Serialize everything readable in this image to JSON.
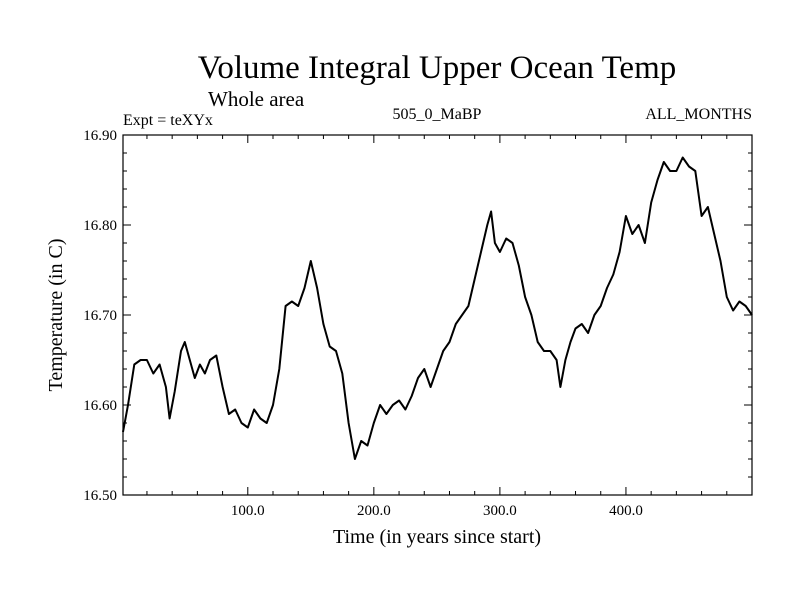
{
  "chart_data": {
    "type": "line",
    "title": "Volume Integral Upper Ocean Temp",
    "subtitle": "Whole area",
    "header_left": "Expt = teXYx",
    "header_center": "505_0_MaBP",
    "header_right": "ALL_MONTHS",
    "xlabel": "Time (in years since start)",
    "ylabel": "Temperature (in C)",
    "xlim": [
      1,
      500
    ],
    "ylim": [
      16.5,
      16.9
    ],
    "xticks": [
      100,
      200,
      300,
      400
    ],
    "xtick_labels": [
      "100.0",
      "200.0",
      "300.0",
      "400.0"
    ],
    "yticks": [
      16.5,
      16.6,
      16.7,
      16.8,
      16.9
    ],
    "ytick_labels": [
      "16.50",
      "16.60",
      "16.70",
      "16.80",
      "16.90"
    ],
    "series": [
      {
        "points": [
          [
            1,
            16.57
          ],
          [
            5,
            16.6
          ],
          [
            10,
            16.645
          ],
          [
            15,
            16.65
          ],
          [
            20,
            16.65
          ],
          [
            25,
            16.635
          ],
          [
            30,
            16.645
          ],
          [
            35,
            16.62
          ],
          [
            38,
            16.585
          ],
          [
            42,
            16.615
          ],
          [
            47,
            16.66
          ],
          [
            50,
            16.67
          ],
          [
            54,
            16.65
          ],
          [
            58,
            16.63
          ],
          [
            62,
            16.645
          ],
          [
            66,
            16.635
          ],
          [
            70,
            16.65
          ],
          [
            75,
            16.655
          ],
          [
            80,
            16.62
          ],
          [
            85,
            16.59
          ],
          [
            90,
            16.595
          ],
          [
            95,
            16.58
          ],
          [
            100,
            16.575
          ],
          [
            105,
            16.595
          ],
          [
            110,
            16.585
          ],
          [
            115,
            16.58
          ],
          [
            120,
            16.6
          ],
          [
            125,
            16.64
          ],
          [
            130,
            16.71
          ],
          [
            135,
            16.715
          ],
          [
            140,
            16.71
          ],
          [
            145,
            16.73
          ],
          [
            150,
            16.76
          ],
          [
            155,
            16.73
          ],
          [
            160,
            16.69
          ],
          [
            165,
            16.665
          ],
          [
            170,
            16.66
          ],
          [
            175,
            16.635
          ],
          [
            180,
            16.58
          ],
          [
            185,
            16.54
          ],
          [
            190,
            16.56
          ],
          [
            195,
            16.555
          ],
          [
            200,
            16.58
          ],
          [
            205,
            16.6
          ],
          [
            210,
            16.59
          ],
          [
            215,
            16.6
          ],
          [
            220,
            16.605
          ],
          [
            225,
            16.595
          ],
          [
            230,
            16.61
          ],
          [
            235,
            16.63
          ],
          [
            240,
            16.64
          ],
          [
            245,
            16.62
          ],
          [
            250,
            16.64
          ],
          [
            255,
            16.66
          ],
          [
            260,
            16.67
          ],
          [
            265,
            16.69
          ],
          [
            270,
            16.7
          ],
          [
            275,
            16.71
          ],
          [
            280,
            16.74
          ],
          [
            285,
            16.77
          ],
          [
            290,
            16.8
          ],
          [
            293,
            16.815
          ],
          [
            296,
            16.78
          ],
          [
            300,
            16.77
          ],
          [
            305,
            16.785
          ],
          [
            310,
            16.78
          ],
          [
            315,
            16.755
          ],
          [
            320,
            16.72
          ],
          [
            325,
            16.7
          ],
          [
            330,
            16.67
          ],
          [
            335,
            16.66
          ],
          [
            340,
            16.66
          ],
          [
            345,
            16.65
          ],
          [
            348,
            16.62
          ],
          [
            352,
            16.65
          ],
          [
            356,
            16.67
          ],
          [
            360,
            16.685
          ],
          [
            365,
            16.69
          ],
          [
            370,
            16.68
          ],
          [
            375,
            16.7
          ],
          [
            380,
            16.71
          ],
          [
            385,
            16.73
          ],
          [
            390,
            16.745
          ],
          [
            395,
            16.77
          ],
          [
            400,
            16.81
          ],
          [
            405,
            16.79
          ],
          [
            410,
            16.8
          ],
          [
            415,
            16.78
          ],
          [
            420,
            16.825
          ],
          [
            425,
            16.85
          ],
          [
            430,
            16.87
          ],
          [
            435,
            16.86
          ],
          [
            440,
            16.86
          ],
          [
            445,
            16.875
          ],
          [
            450,
            16.865
          ],
          [
            455,
            16.86
          ],
          [
            460,
            16.81
          ],
          [
            465,
            16.82
          ],
          [
            470,
            16.79
          ],
          [
            475,
            16.76
          ],
          [
            480,
            16.72
          ],
          [
            485,
            16.705
          ],
          [
            490,
            16.715
          ],
          [
            495,
            16.71
          ],
          [
            500,
            16.7
          ]
        ]
      }
    ]
  }
}
